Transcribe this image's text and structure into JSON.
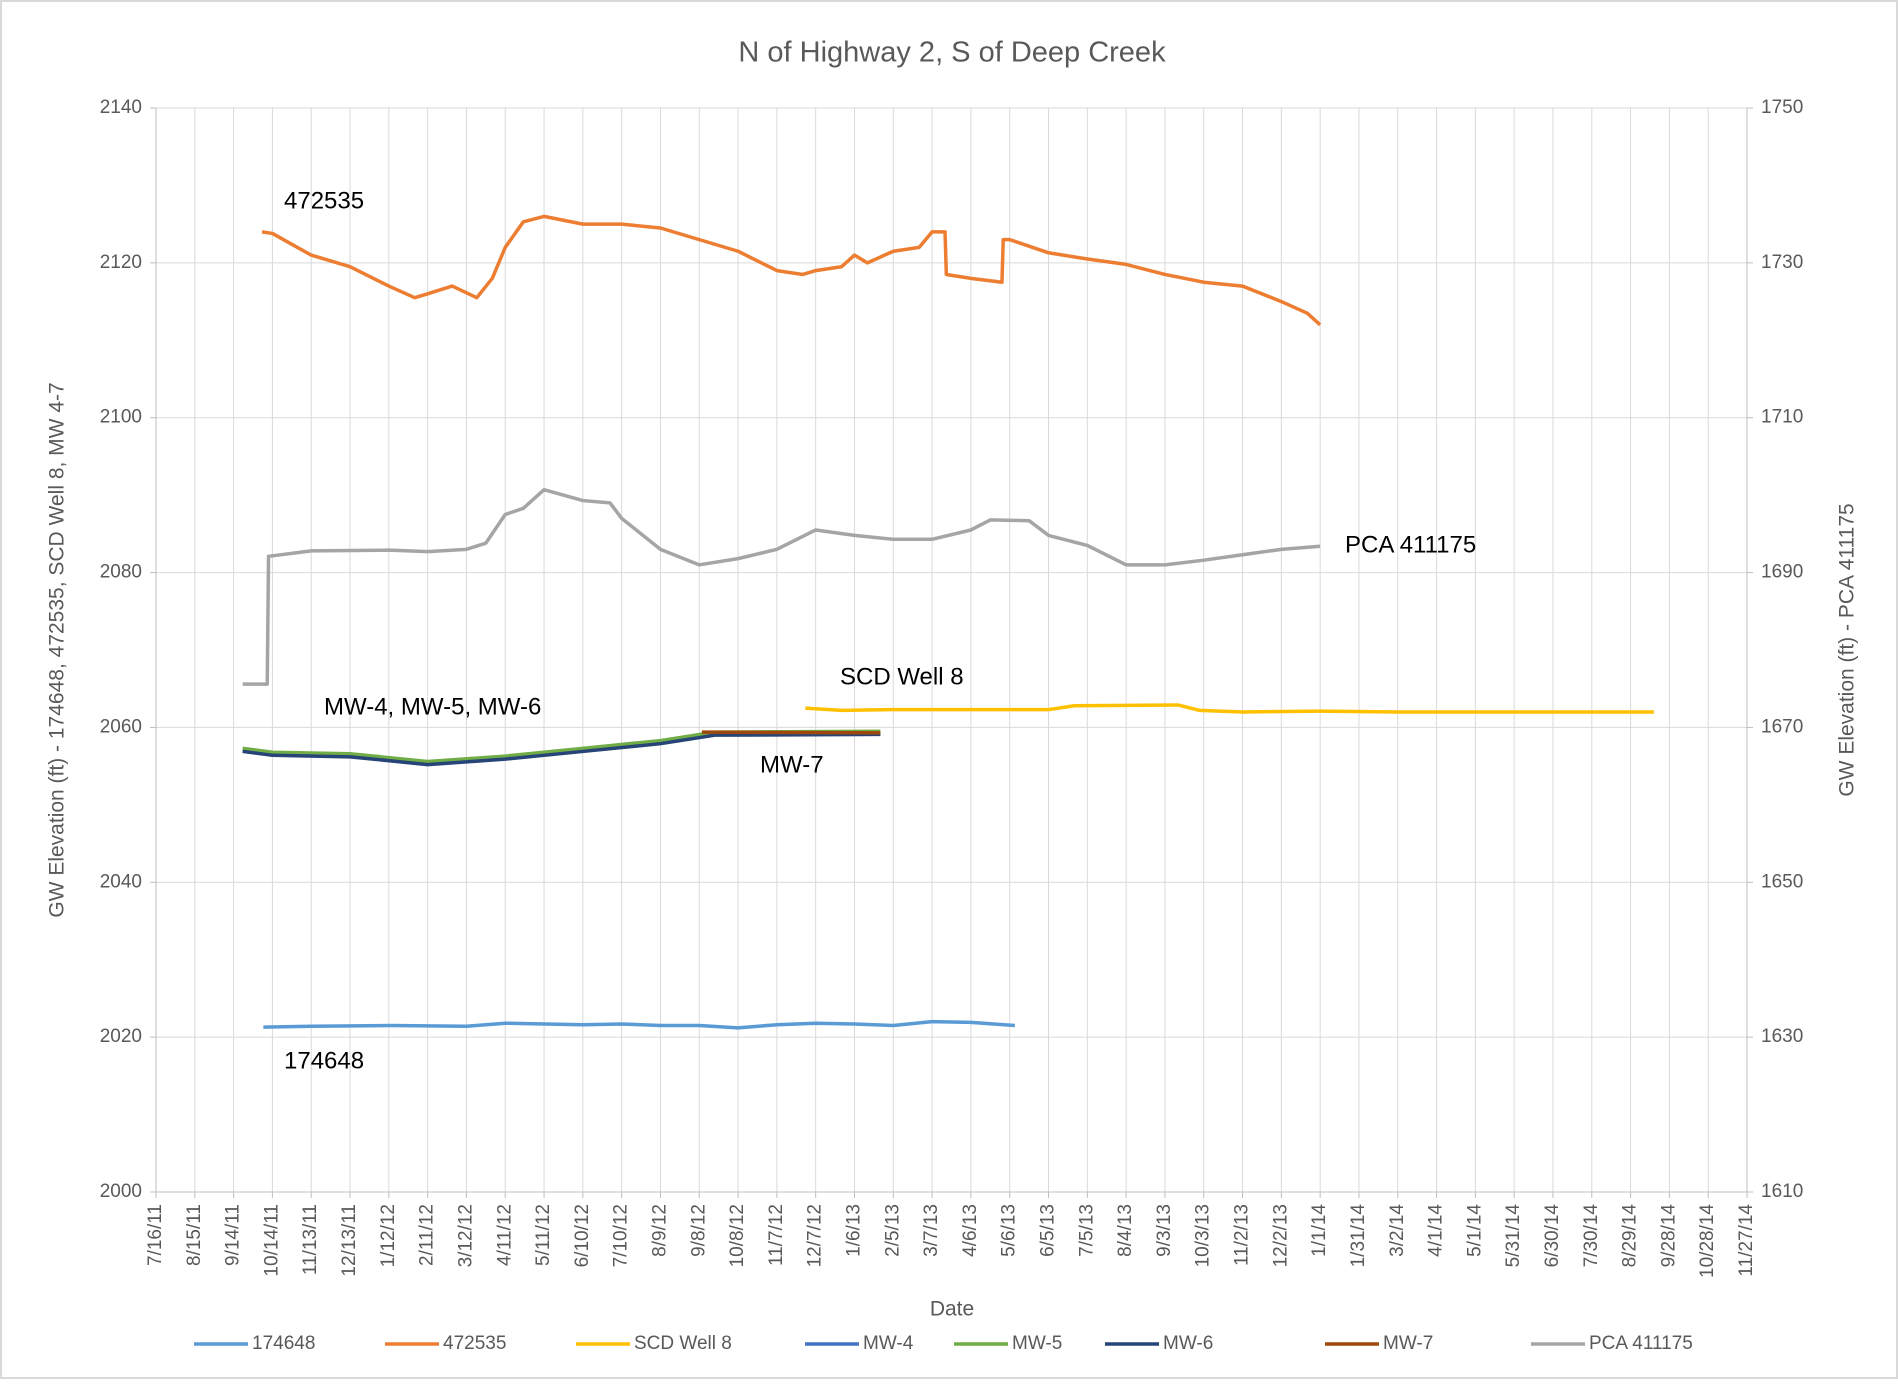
{
  "chart_data": {
    "type": "line",
    "title": "N of Highway 2, S of Deep Creek",
    "xlabel": "Date",
    "ylabel": "GW Elevation (ft) - 174648,  472535,  SCD Well 8, MW 4-7",
    "y2label": "GW Elevation (ft) - PCA 411175",
    "grid": true,
    "legend": "bottom",
    "xlim": [
      "2011-07-16",
      "2014-11-27"
    ],
    "xticks": [
      {
        "value": "2011-07-16",
        "label": "7/16/11"
      },
      {
        "value": "2011-08-15",
        "label": "8/15/11"
      },
      {
        "value": "2011-09-14",
        "label": "9/14/11"
      },
      {
        "value": "2011-10-14",
        "label": "10/14/11"
      },
      {
        "value": "2011-11-13",
        "label": "11/13/11"
      },
      {
        "value": "2011-12-13",
        "label": "12/13/11"
      },
      {
        "value": "2012-01-12",
        "label": "1/12/12"
      },
      {
        "value": "2012-02-11",
        "label": "2/11/12"
      },
      {
        "value": "2012-03-12",
        "label": "3/12/12"
      },
      {
        "value": "2012-04-11",
        "label": "4/11/12"
      },
      {
        "value": "2012-05-11",
        "label": "5/11/12"
      },
      {
        "value": "2012-06-10",
        "label": "6/10/12"
      },
      {
        "value": "2012-07-10",
        "label": "7/10/12"
      },
      {
        "value": "2012-08-09",
        "label": "8/9/12"
      },
      {
        "value": "2012-09-08",
        "label": "9/8/12"
      },
      {
        "value": "2012-10-08",
        "label": "10/8/12"
      },
      {
        "value": "2012-11-07",
        "label": "11/7/12"
      },
      {
        "value": "2012-12-07",
        "label": "12/7/12"
      },
      {
        "value": "2013-01-06",
        "label": "1/6/13"
      },
      {
        "value": "2013-02-05",
        "label": "2/5/13"
      },
      {
        "value": "2013-03-07",
        "label": "3/7/13"
      },
      {
        "value": "2013-04-06",
        "label": "4/6/13"
      },
      {
        "value": "2013-05-06",
        "label": "5/6/13"
      },
      {
        "value": "2013-06-05",
        "label": "6/5/13"
      },
      {
        "value": "2013-07-05",
        "label": "7/5/13"
      },
      {
        "value": "2013-08-04",
        "label": "8/4/13"
      },
      {
        "value": "2013-09-03",
        "label": "9/3/13"
      },
      {
        "value": "2013-10-03",
        "label": "10/3/13"
      },
      {
        "value": "2013-11-02",
        "label": "11/2/13"
      },
      {
        "value": "2013-12-02",
        "label": "12/2/13"
      },
      {
        "value": "2014-01-01",
        "label": "1/1/14"
      },
      {
        "value": "2014-01-31",
        "label": "1/31/14"
      },
      {
        "value": "2014-03-02",
        "label": "3/2/14"
      },
      {
        "value": "2014-04-01",
        "label": "4/1/14"
      },
      {
        "value": "2014-05-01",
        "label": "5/1/14"
      },
      {
        "value": "2014-05-31",
        "label": "5/31/14"
      },
      {
        "value": "2014-06-30",
        "label": "6/30/14"
      },
      {
        "value": "2014-07-30",
        "label": "7/30/14"
      },
      {
        "value": "2014-08-29",
        "label": "8/29/14"
      },
      {
        "value": "2014-09-28",
        "label": "9/28/14"
      },
      {
        "value": "2014-10-28",
        "label": "10/28/14"
      },
      {
        "value": "2014-11-27",
        "label": "11/27/14"
      }
    ],
    "ylim": [
      2000,
      2140
    ],
    "yticks": [
      2000,
      2020,
      2040,
      2060,
      2080,
      2100,
      2120,
      2140
    ],
    "y2lim": [
      1610,
      1750
    ],
    "y2ticks": [
      1610,
      1630,
      1650,
      1670,
      1690,
      1710,
      1730,
      1750
    ],
    "annotations": [
      "472535",
      "PCA 411175",
      "SCD Well 8",
      "MW-4, MW-5, MW-6",
      "MW-7",
      "174648"
    ],
    "series": [
      {
        "name": "174648",
        "color": "#5b9bd5",
        "x": [
          "2011-10-07",
          "2011-11-13",
          "2012-01-12",
          "2012-03-12",
          "2012-04-11",
          "2012-06-10",
          "2012-07-10",
          "2012-08-09",
          "2012-09-08",
          "2012-10-08",
          "2012-11-07",
          "2012-12-07",
          "2013-01-06",
          "2013-02-05",
          "2013-03-07",
          "2013-04-06",
          "2013-05-10"
        ],
        "values": [
          2021.3,
          2021.4,
          2021.5,
          2021.4,
          2021.8,
          2021.6,
          2021.7,
          2021.5,
          2021.5,
          2021.2,
          2021.6,
          2021.8,
          2021.7,
          2021.5,
          2022.0,
          2021.9,
          2021.5
        ]
      },
      {
        "name": "472535",
        "color": "#ed7d31",
        "x": [
          "2011-10-06",
          "2011-10-14",
          "2011-11-13",
          "2011-12-13",
          "2012-01-12",
          "2012-02-01",
          "2012-02-11",
          "2012-03-01",
          "2012-03-20",
          "2012-04-01",
          "2012-04-11",
          "2012-04-25",
          "2012-05-11",
          "2012-06-10",
          "2012-07-10",
          "2012-08-09",
          "2012-09-08",
          "2012-10-08",
          "2012-11-07",
          "2012-11-27",
          "2012-12-07",
          "2012-12-27",
          "2013-01-06",
          "2013-01-16",
          "2013-02-05",
          "2013-02-25",
          "2013-03-07",
          "2013-03-17",
          "2013-03-18",
          "2013-04-06",
          "2013-04-30",
          "2013-05-01",
          "2013-05-06",
          "2013-06-05",
          "2013-07-05",
          "2013-08-04",
          "2013-09-03",
          "2013-10-03",
          "2013-11-02",
          "2013-12-02",
          "2013-12-22",
          "2014-01-01"
        ],
        "values": [
          2124,
          2123.8,
          2121,
          2119.5,
          2117,
          2115.5,
          2116,
          2117,
          2115.5,
          2118,
          2122,
          2125.3,
          2126,
          2125,
          2125,
          2124.5,
          2123,
          2121.5,
          2119,
          2118.5,
          2119,
          2119.5,
          2121,
          2120,
          2121.5,
          2122,
          2124,
          2124,
          2118.5,
          2118,
          2117.5,
          2123,
          2123,
          2121.3,
          2120.5,
          2119.8,
          2118.5,
          2117.5,
          2117,
          2115,
          2113.5,
          2112
        ]
      },
      {
        "name": "SCD Well 8",
        "color": "#ffc000",
        "x": [
          "2012-11-29",
          "2012-12-27",
          "2013-02-05",
          "2013-04-06",
          "2013-06-05",
          "2013-06-25",
          "2013-09-13",
          "2013-09-30",
          "2013-11-02",
          "2014-01-01",
          "2014-03-02",
          "2014-05-01",
          "2014-07-30",
          "2014-09-16"
        ],
        "values": [
          2062.5,
          2062.2,
          2062.3,
          2062.3,
          2062.3,
          2062.8,
          2062.9,
          2062.2,
          2062,
          2062.1,
          2062,
          2062,
          2062,
          2062
        ]
      },
      {
        "name": "MW-4",
        "color": "#4472c4",
        "x": [
          "2011-09-21",
          "2011-10-14",
          "2011-12-13",
          "2012-02-11",
          "2012-04-11",
          "2012-06-10",
          "2012-08-09",
          "2012-09-20",
          "2013-01-26"
        ],
        "values": [
          2057,
          2056.5,
          2056.3,
          2055.3,
          2056,
          2057,
          2058,
          2059.1,
          2059.2
        ]
      },
      {
        "name": "MW-5",
        "color": "#70ad47",
        "x": [
          "2011-09-21",
          "2011-10-14",
          "2011-12-13",
          "2012-02-11",
          "2012-04-11",
          "2012-06-10",
          "2012-08-09",
          "2012-09-20",
          "2013-01-26"
        ],
        "values": [
          2057.3,
          2056.8,
          2056.6,
          2055.6,
          2056.3,
          2057.3,
          2058.3,
          2059.4,
          2059.5
        ]
      },
      {
        "name": "MW-6",
        "color": "#264478",
        "x": [
          "2011-09-21",
          "2011-10-14",
          "2011-12-13",
          "2012-02-11",
          "2012-04-11",
          "2012-06-10",
          "2012-08-09",
          "2012-09-20",
          "2013-01-26"
        ],
        "values": [
          2056.9,
          2056.4,
          2056.2,
          2055.2,
          2055.9,
          2056.9,
          2057.9,
          2059,
          2059.1
        ]
      },
      {
        "name": "MW-7",
        "color": "#9e480e",
        "x": [
          "2012-09-10",
          "2013-01-26"
        ],
        "values": [
          2059.4,
          2059.3
        ]
      },
      {
        "name": "PCA 411175",
        "color": "#a5a5a5",
        "axis": "y2",
        "x": [
          "2011-09-21",
          "2011-10-10",
          "2011-10-11",
          "2011-11-13",
          "2012-01-12",
          "2012-02-11",
          "2012-03-12",
          "2012-03-27",
          "2012-04-11",
          "2012-04-25",
          "2012-05-11",
          "2012-06-10",
          "2012-07-01",
          "2012-07-10",
          "2012-08-09",
          "2012-09-08",
          "2012-10-08",
          "2012-11-07",
          "2012-12-07",
          "2013-01-06",
          "2013-02-05",
          "2013-03-07",
          "2013-04-06",
          "2013-04-21",
          "2013-05-21",
          "2013-06-05",
          "2013-07-05",
          "2013-08-04",
          "2013-09-03",
          "2013-10-03",
          "2013-11-02",
          "2013-12-02",
          "2014-01-01"
        ],
        "values": [
          1675.6,
          1675.6,
          1692.1,
          1692.8,
          1692.9,
          1692.7,
          1693,
          1693.8,
          1697.5,
          1698.3,
          1700.7,
          1699.3,
          1699,
          1697,
          1693,
          1691,
          1691.8,
          1693,
          1695.5,
          1694.8,
          1694.3,
          1694.3,
          1695.5,
          1696.8,
          1696.7,
          1694.8,
          1693.5,
          1691,
          1691,
          1691.6,
          1692.3,
          1693,
          1693.4
        ]
      }
    ]
  }
}
